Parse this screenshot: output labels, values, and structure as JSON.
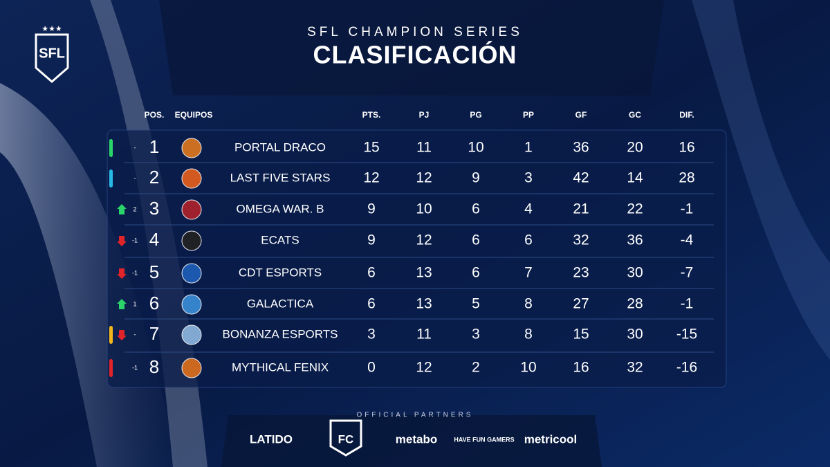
{
  "header": {
    "logo": "SFL",
    "series": "SFL CHAMPION SERIES",
    "title": "CLASIFICACIÓN"
  },
  "table": {
    "columns": [
      "POS.",
      "EQUIPOS",
      "PTS.",
      "PJ",
      "PG",
      "PP",
      "GF",
      "GC",
      "DIF."
    ],
    "rows": [
      {
        "marker": "#2bd36b",
        "trend": null,
        "change": "-",
        "pos": 1,
        "team": "PORTAL DRACO",
        "pts": 15,
        "pj": 11,
        "pg": 10,
        "pp": 1,
        "gf": 36,
        "gc": 20,
        "dif": 16
      },
      {
        "marker": "#27b8e6",
        "trend": null,
        "change": "-",
        "pos": 2,
        "team": "LAST FIVE STARS",
        "pts": 12,
        "pj": 12,
        "pg": 9,
        "pp": 3,
        "gf": 42,
        "gc": 14,
        "dif": 28
      },
      {
        "marker": null,
        "trend": "up",
        "change": "2",
        "pos": 3,
        "team": "OMEGA WAR. B",
        "pts": 9,
        "pj": 10,
        "pg": 6,
        "pp": 4,
        "gf": 21,
        "gc": 22,
        "dif": -1
      },
      {
        "marker": null,
        "trend": "down",
        "change": "-1",
        "pos": 4,
        "team": "ECATS",
        "pts": 9,
        "pj": 12,
        "pg": 6,
        "pp": 6,
        "gf": 32,
        "gc": 36,
        "dif": -4
      },
      {
        "marker": null,
        "trend": "down",
        "change": "-1",
        "pos": 5,
        "team": "CDT ESPORTS",
        "pts": 6,
        "pj": 13,
        "pg": 6,
        "pp": 7,
        "gf": 23,
        "gc": 30,
        "dif": -7
      },
      {
        "marker": null,
        "trend": "up",
        "change": "1",
        "pos": 6,
        "team": "GALACTICA",
        "pts": 6,
        "pj": 13,
        "pg": 5,
        "pp": 8,
        "gf": 27,
        "gc": 28,
        "dif": -1
      },
      {
        "marker": "#f0b61c",
        "trend": "down",
        "change": "-",
        "pos": 7,
        "team": "BONANZA ESPORTS",
        "pts": 3,
        "pj": 11,
        "pg": 3,
        "pp": 8,
        "gf": 15,
        "gc": 30,
        "dif": -15
      },
      {
        "marker": "#e0242a",
        "trend": null,
        "change": "-1",
        "pos": 8,
        "team": "MYTHICAL FENIX",
        "pts": 0,
        "pj": 12,
        "pg": 2,
        "pp": 10,
        "gf": 16,
        "gc": 32,
        "dif": -16
      }
    ]
  },
  "partners": {
    "title": "OFFICIAL PARTNERS",
    "logos": [
      "LATIDO",
      "FC",
      "metabo",
      "HAVE FUN GAMERS",
      "metricool"
    ]
  }
}
